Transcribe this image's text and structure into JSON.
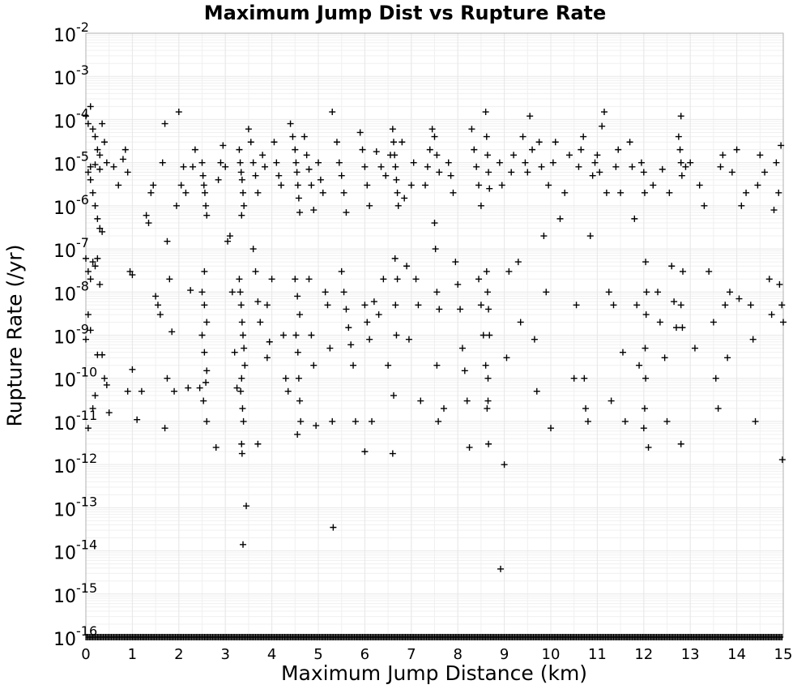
{
  "chart_data": {
    "type": "scatter",
    "title": "Maximum Jump Dist vs Rupture Rate",
    "xlabel": "Maximum Jump Distance (km)",
    "ylabel": "Rupture Rate (/yr)",
    "xlim": [
      0,
      15
    ],
    "ylim": [
      1e-16,
      0.01
    ],
    "yscale": "log",
    "grid": true,
    "marker": "plus",
    "marker_color": "#000000",
    "grid_color": "#e8e8e8",
    "x_ticks": [
      "0",
      "1",
      "2",
      "3",
      "4",
      "5",
      "6",
      "7",
      "8",
      "9",
      "10",
      "11",
      "12",
      "13",
      "14",
      "15"
    ],
    "y_ticks": [
      {
        "base": "10",
        "exp": "-2"
      },
      {
        "base": "10",
        "exp": "-3"
      },
      {
        "base": "10",
        "exp": "-4"
      },
      {
        "base": "10",
        "exp": "-5"
      },
      {
        "base": "10",
        "exp": "-6"
      },
      {
        "base": "10",
        "exp": "-7"
      },
      {
        "base": "10",
        "exp": "-8"
      },
      {
        "base": "10",
        "exp": "-9"
      },
      {
        "base": "10",
        "exp": "-10"
      },
      {
        "base": "10",
        "exp": "-11"
      },
      {
        "base": "10",
        "exp": "-12"
      },
      {
        "base": "10",
        "exp": "-13"
      },
      {
        "base": "10",
        "exp": "-14"
      },
      {
        "base": "10",
        "exp": "-15"
      },
      {
        "base": "10",
        "exp": "-16"
      }
    ],
    "points": [
      [
        0.0,
        0.00012
      ],
      [
        0.05,
        8e-05
      ],
      [
        0.1,
        0.0002
      ],
      [
        0.15,
        6e-05
      ],
      [
        0.2,
        4e-05
      ],
      [
        0.25,
        2e-05
      ],
      [
        0.3,
        1.5e-05
      ],
      [
        0.35,
        8e-05
      ],
      [
        0.4,
        3e-05
      ],
      [
        0.45,
        1e-05
      ],
      [
        0.05,
        6e-06
      ],
      [
        0.1,
        4e-06
      ],
      [
        0.15,
        2e-06
      ],
      [
        0.2,
        1e-06
      ],
      [
        0.25,
        5e-07
      ],
      [
        0.3,
        3e-07
      ],
      [
        0.35,
        2.5e-07
      ],
      [
        0.1,
        8e-06
      ],
      [
        0.2,
        9e-06
      ],
      [
        0.3,
        7e-06
      ],
      [
        0.0,
        6e-08
      ],
      [
        0.05,
        3e-08
      ],
      [
        0.1,
        2e-08
      ],
      [
        0.15,
        5e-08
      ],
      [
        0.2,
        4e-08
      ],
      [
        0.25,
        6e-08
      ],
      [
        0.3,
        1.5e-08
      ],
      [
        0.05,
        3e-09
      ],
      [
        0.1,
        1.3e-09
      ],
      [
        0.0,
        8e-10
      ],
      [
        0.25,
        3.5e-10
      ],
      [
        0.35,
        3.5e-10
      ],
      [
        0.4,
        1e-10
      ],
      [
        0.45,
        7e-11
      ],
      [
        0.15,
        2e-11
      ],
      [
        0.2,
        4e-11
      ],
      [
        0.05,
        7e-12
      ],
      [
        0.5,
        1.6e-11
      ],
      [
        0.6,
        8e-06
      ],
      [
        0.7,
        3e-06
      ],
      [
        0.8,
        1.2e-05
      ],
      [
        0.85,
        2e-05
      ],
      [
        0.9,
        6e-06
      ],
      [
        0.95,
        3e-08
      ],
      [
        1.0,
        2.5e-08
      ],
      [
        0.9,
        5e-11
      ],
      [
        1.0,
        1.6e-10
      ],
      [
        1.1,
        1.1e-11
      ],
      [
        1.2,
        5e-11
      ],
      [
        1.3,
        6e-07
      ],
      [
        1.35,
        4e-07
      ],
      [
        1.4,
        2e-06
      ],
      [
        1.45,
        3e-06
      ],
      [
        1.5,
        8e-09
      ],
      [
        1.55,
        5e-09
      ],
      [
        1.6,
        3e-09
      ],
      [
        1.65,
        1e-05
      ],
      [
        1.7,
        8e-05
      ],
      [
        1.75,
        1.5e-07
      ],
      [
        1.8,
        2e-08
      ],
      [
        1.85,
        1.2e-09
      ],
      [
        1.9,
        5e-11
      ],
      [
        1.75,
        1e-10
      ],
      [
        1.7,
        7e-12
      ],
      [
        1.95,
        1e-06
      ],
      [
        2.0,
        0.00015
      ],
      [
        2.05,
        3e-06
      ],
      [
        2.1,
        8e-06
      ],
      [
        2.15,
        2e-06
      ],
      [
        2.2,
        6e-11
      ],
      [
        2.25,
        1.1e-08
      ],
      [
        2.3,
        8e-06
      ],
      [
        2.35,
        2e-05
      ],
      [
        2.45,
        6e-11
      ],
      [
        2.5,
        1e-05
      ],
      [
        2.52,
        5e-06
      ],
      [
        2.54,
        3e-06
      ],
      [
        2.56,
        2e-06
      ],
      [
        2.58,
        1e-06
      ],
      [
        2.6,
        6e-07
      ],
      [
        2.55,
        3e-08
      ],
      [
        2.5,
        1e-08
      ],
      [
        2.55,
        5e-09
      ],
      [
        2.6,
        2e-09
      ],
      [
        2.5,
        1e-09
      ],
      [
        2.55,
        4e-10
      ],
      [
        2.6,
        1.5e-10
      ],
      [
        2.58,
        8e-11
      ],
      [
        2.53,
        3e-11
      ],
      [
        2.6,
        1e-11
      ],
      [
        2.8,
        2.5e-12
      ],
      [
        2.85,
        4e-06
      ],
      [
        2.9,
        1e-05
      ],
      [
        2.95,
        2.5e-05
      ],
      [
        3.0,
        8e-06
      ],
      [
        3.05,
        1.5e-07
      ],
      [
        3.1,
        2e-07
      ],
      [
        3.15,
        1e-08
      ],
      [
        3.2,
        4e-10
      ],
      [
        3.25,
        6e-11
      ],
      [
        3.3,
        2e-05
      ],
      [
        3.32,
        1e-05
      ],
      [
        3.34,
        6e-06
      ],
      [
        3.36,
        4e-06
      ],
      [
        3.38,
        2e-06
      ],
      [
        3.4,
        1e-06
      ],
      [
        3.35,
        6e-07
      ],
      [
        3.3,
        2e-08
      ],
      [
        3.32,
        1e-08
      ],
      [
        3.34,
        5e-09
      ],
      [
        3.36,
        2e-09
      ],
      [
        3.38,
        1e-09
      ],
      [
        3.4,
        5e-10
      ],
      [
        3.42,
        2e-10
      ],
      [
        3.35,
        1e-10
      ],
      [
        3.33,
        5e-11
      ],
      [
        3.37,
        2e-11
      ],
      [
        3.39,
        1e-11
      ],
      [
        3.35,
        3e-12
      ],
      [
        3.36,
        1.8e-12
      ],
      [
        3.45,
        1.1e-13
      ],
      [
        3.38,
        1.4e-14
      ],
      [
        3.5,
        6e-05
      ],
      [
        3.55,
        3e-05
      ],
      [
        3.6,
        1e-05
      ],
      [
        3.65,
        5e-06
      ],
      [
        3.7,
        2e-06
      ],
      [
        3.6,
        1e-07
      ],
      [
        3.65,
        3e-08
      ],
      [
        3.7,
        6e-09
      ],
      [
        3.75,
        2e-09
      ],
      [
        3.7,
        3e-12
      ],
      [
        3.8,
        1.5e-05
      ],
      [
        3.85,
        8e-06
      ],
      [
        3.9,
        5e-09
      ],
      [
        3.95,
        7e-10
      ],
      [
        3.9,
        3e-10
      ],
      [
        4.0,
        2e-08
      ],
      [
        4.05,
        3e-05
      ],
      [
        4.1,
        1e-05
      ],
      [
        4.15,
        5e-06
      ],
      [
        4.2,
        3e-06
      ],
      [
        4.25,
        1e-09
      ],
      [
        4.3,
        1e-10
      ],
      [
        4.35,
        5e-11
      ],
      [
        4.4,
        8e-05
      ],
      [
        4.45,
        4e-05
      ],
      [
        4.5,
        2e-05
      ],
      [
        4.52,
        1e-05
      ],
      [
        4.54,
        6e-06
      ],
      [
        4.56,
        3e-06
      ],
      [
        4.58,
        1.5e-06
      ],
      [
        4.6,
        7e-07
      ],
      [
        4.5,
        2e-08
      ],
      [
        4.55,
        8e-09
      ],
      [
        4.6,
        3e-09
      ],
      [
        4.52,
        1e-09
      ],
      [
        4.56,
        4e-10
      ],
      [
        4.58,
        1e-10
      ],
      [
        4.6,
        3e-11
      ],
      [
        4.62,
        1e-11
      ],
      [
        4.55,
        5e-12
      ],
      [
        4.7,
        4e-05
      ],
      [
        4.75,
        1.5e-05
      ],
      [
        4.8,
        7e-06
      ],
      [
        4.85,
        3e-06
      ],
      [
        4.9,
        8e-07
      ],
      [
        4.8,
        2e-08
      ],
      [
        4.85,
        1e-09
      ],
      [
        4.9,
        2e-10
      ],
      [
        4.95,
        8e-12
      ],
      [
        5.0,
        1e-05
      ],
      [
        5.05,
        4e-06
      ],
      [
        5.1,
        2e-06
      ],
      [
        5.15,
        1e-08
      ],
      [
        5.2,
        5e-09
      ],
      [
        5.25,
        5e-10
      ],
      [
        5.3,
        1e-11
      ],
      [
        5.3,
        0.00015
      ],
      [
        5.32,
        3.5e-14
      ],
      [
        5.4,
        3e-05
      ],
      [
        5.45,
        1e-05
      ],
      [
        5.5,
        5e-06
      ],
      [
        5.55,
        2e-06
      ],
      [
        5.6,
        7e-07
      ],
      [
        5.5,
        3e-08
      ],
      [
        5.55,
        1e-08
      ],
      [
        5.6,
        4e-09
      ],
      [
        5.65,
        1.5e-09
      ],
      [
        5.7,
        6e-10
      ],
      [
        5.75,
        2e-10
      ],
      [
        5.8,
        1e-11
      ],
      [
        5.9,
        5e-05
      ],
      [
        5.95,
        2e-05
      ],
      [
        6.0,
        8e-06
      ],
      [
        6.05,
        3e-06
      ],
      [
        6.1,
        1e-06
      ],
      [
        6.0,
        5e-09
      ],
      [
        6.05,
        2e-09
      ],
      [
        6.1,
        8e-10
      ],
      [
        6.0,
        2e-12
      ],
      [
        6.15,
        1e-11
      ],
      [
        6.2,
        6e-09
      ],
      [
        6.25,
        1.8e-05
      ],
      [
        6.3,
        3e-09
      ],
      [
        6.35,
        8e-06
      ],
      [
        6.4,
        2e-08
      ],
      [
        6.45,
        5e-06
      ],
      [
        6.5,
        2e-10
      ],
      [
        6.55,
        1.5e-05
      ],
      [
        6.6,
        6e-05
      ],
      [
        6.62,
        3e-05
      ],
      [
        6.64,
        1.5e-05
      ],
      [
        6.66,
        8e-06
      ],
      [
        6.68,
        4e-06
      ],
      [
        6.7,
        2e-06
      ],
      [
        6.72,
        1e-06
      ],
      [
        6.65,
        6e-08
      ],
      [
        6.7,
        2e-08
      ],
      [
        6.66,
        5e-09
      ],
      [
        6.68,
        1e-09
      ],
      [
        6.62,
        4e-11
      ],
      [
        6.6,
        1.8e-12
      ],
      [
        6.8,
        3e-05
      ],
      [
        6.85,
        1.5e-06
      ],
      [
        6.9,
        4e-08
      ],
      [
        6.95,
        8e-10
      ],
      [
        7.0,
        3e-06
      ],
      [
        7.05,
        1e-05
      ],
      [
        7.1,
        2e-08
      ],
      [
        7.15,
        5e-09
      ],
      [
        7.2,
        3e-11
      ],
      [
        7.3,
        3e-06
      ],
      [
        7.35,
        8e-06
      ],
      [
        7.4,
        2e-05
      ],
      [
        7.45,
        6e-05
      ],
      [
        7.5,
        4e-05
      ],
      [
        7.55,
        1.5e-05
      ],
      [
        7.6,
        6e-06
      ],
      [
        7.5,
        4e-07
      ],
      [
        7.52,
        1e-07
      ],
      [
        7.55,
        1e-08
      ],
      [
        7.6,
        4e-09
      ],
      [
        7.55,
        2e-10
      ],
      [
        7.58,
        1e-11
      ],
      [
        7.7,
        2e-11
      ],
      [
        7.8,
        1e-05
      ],
      [
        7.85,
        5e-06
      ],
      [
        7.9,
        2e-06
      ],
      [
        7.95,
        5e-08
      ],
      [
        8.0,
        1.5e-08
      ],
      [
        8.05,
        4e-09
      ],
      [
        8.1,
        5e-10
      ],
      [
        8.15,
        1.5e-10
      ],
      [
        8.2,
        3e-11
      ],
      [
        8.25,
        2.5e-12
      ],
      [
        8.3,
        6e-05
      ],
      [
        8.35,
        2e-05
      ],
      [
        8.4,
        8e-06
      ],
      [
        8.45,
        3e-06
      ],
      [
        8.5,
        1e-06
      ],
      [
        8.45,
        2e-08
      ],
      [
        8.5,
        5e-09
      ],
      [
        8.55,
        1e-09
      ],
      [
        8.6,
        2e-10
      ],
      [
        8.65,
        3e-11
      ],
      [
        8.6,
        0.00015
      ],
      [
        8.62,
        4e-05
      ],
      [
        8.64,
        1.5e-05
      ],
      [
        8.66,
        6e-06
      ],
      [
        8.68,
        2.5e-06
      ],
      [
        8.62,
        3e-08
      ],
      [
        8.64,
        1e-08
      ],
      [
        8.66,
        4e-09
      ],
      [
        8.68,
        1e-09
      ],
      [
        8.65,
        1e-10
      ],
      [
        8.63,
        2e-11
      ],
      [
        8.66,
        3e-12
      ],
      [
        8.9,
        1e-05
      ],
      [
        8.95,
        3e-06
      ],
      [
        8.92,
        3.8e-15
      ],
      [
        9.0,
        1e-12
      ],
      [
        9.05,
        3e-10
      ],
      [
        9.1,
        3e-08
      ],
      [
        9.15,
        6e-06
      ],
      [
        9.2,
        1.5e-05
      ],
      [
        9.3,
        5e-08
      ],
      [
        9.35,
        2e-09
      ],
      [
        9.4,
        4e-05
      ],
      [
        9.45,
        1e-05
      ],
      [
        9.5,
        6e-06
      ],
      [
        9.55,
        0.00012
      ],
      [
        9.6,
        2e-05
      ],
      [
        9.65,
        8e-10
      ],
      [
        9.7,
        5e-11
      ],
      [
        9.75,
        3e-05
      ],
      [
        9.8,
        8e-06
      ],
      [
        9.85,
        2e-07
      ],
      [
        9.9,
        1e-08
      ],
      [
        9.95,
        3e-06
      ],
      [
        10.0,
        7e-12
      ],
      [
        10.05,
        1e-05
      ],
      [
        10.1,
        3e-05
      ],
      [
        10.2,
        5e-07
      ],
      [
        10.3,
        2e-06
      ],
      [
        10.4,
        1.5e-05
      ],
      [
        10.5,
        1e-10
      ],
      [
        10.55,
        5e-09
      ],
      [
        10.6,
        8e-06
      ],
      [
        10.65,
        2e-05
      ],
      [
        10.7,
        4e-05
      ],
      [
        10.72,
        1e-10
      ],
      [
        10.75,
        2e-11
      ],
      [
        10.8,
        1e-11
      ],
      [
        10.85,
        2e-07
      ],
      [
        10.9,
        5e-06
      ],
      [
        10.95,
        1e-05
      ],
      [
        11.0,
        1.5e-05
      ],
      [
        11.05,
        6e-06
      ],
      [
        11.1,
        7e-05
      ],
      [
        11.15,
        0.00015
      ],
      [
        11.2,
        2e-06
      ],
      [
        11.25,
        1e-08
      ],
      [
        11.3,
        3e-11
      ],
      [
        11.35,
        5e-09
      ],
      [
        11.4,
        8e-06
      ],
      [
        11.45,
        2e-05
      ],
      [
        11.5,
        2e-06
      ],
      [
        11.55,
        4e-10
      ],
      [
        11.6,
        1e-11
      ],
      [
        11.7,
        3e-05
      ],
      [
        11.75,
        8e-06
      ],
      [
        11.8,
        5e-07
      ],
      [
        11.85,
        5e-09
      ],
      [
        11.9,
        2e-10
      ],
      [
        11.95,
        1e-05
      ],
      [
        12.0,
        6e-06
      ],
      [
        12.02,
        2e-06
      ],
      [
        12.04,
        5e-08
      ],
      [
        12.06,
        1e-08
      ],
      [
        12.05,
        3e-09
      ],
      [
        12.03,
        5e-10
      ],
      [
        12.04,
        1e-10
      ],
      [
        12.02,
        2e-11
      ],
      [
        12.0,
        7e-12
      ],
      [
        12.1,
        2.5e-12
      ],
      [
        12.2,
        3e-06
      ],
      [
        12.3,
        1e-08
      ],
      [
        12.35,
        2e-09
      ],
      [
        12.4,
        7e-06
      ],
      [
        12.45,
        3e-10
      ],
      [
        12.5,
        1e-11
      ],
      [
        12.55,
        2e-06
      ],
      [
        12.6,
        4e-08
      ],
      [
        12.65,
        6e-09
      ],
      [
        12.7,
        1.5e-09
      ],
      [
        12.75,
        4e-05
      ],
      [
        12.78,
        2e-05
      ],
      [
        12.8,
        1e-05
      ],
      [
        12.82,
        5e-06
      ],
      [
        12.8,
        0.00012
      ],
      [
        12.84,
        3e-08
      ],
      [
        12.8,
        5e-09
      ],
      [
        12.83,
        1.5e-09
      ],
      [
        12.8,
        3e-12
      ],
      [
        12.9,
        8e-06
      ],
      [
        13.0,
        1e-05
      ],
      [
        13.1,
        5e-10
      ],
      [
        13.2,
        3e-06
      ],
      [
        13.3,
        1e-06
      ],
      [
        13.4,
        3e-08
      ],
      [
        13.5,
        2e-09
      ],
      [
        13.55,
        1e-10
      ],
      [
        13.6,
        2e-11
      ],
      [
        13.65,
        8e-06
      ],
      [
        13.7,
        1.5e-05
      ],
      [
        13.75,
        5e-09
      ],
      [
        13.8,
        3e-10
      ],
      [
        13.85,
        1e-08
      ],
      [
        13.9,
        6e-06
      ],
      [
        14.0,
        2e-05
      ],
      [
        14.05,
        7e-09
      ],
      [
        14.1,
        1e-06
      ],
      [
        14.2,
        2e-06
      ],
      [
        14.3,
        5e-09
      ],
      [
        14.35,
        8e-10
      ],
      [
        14.4,
        1e-11
      ],
      [
        14.45,
        3e-06
      ],
      [
        14.5,
        1.5e-05
      ],
      [
        14.6,
        6e-06
      ],
      [
        14.7,
        2e-08
      ],
      [
        14.75,
        3e-09
      ],
      [
        14.8,
        8e-07
      ],
      [
        14.85,
        1e-05
      ],
      [
        14.9,
        2e-06
      ],
      [
        14.95,
        2.5e-05
      ],
      [
        14.97,
        5e-09
      ],
      [
        14.98,
        1.3e-12
      ],
      [
        15.0,
        2e-09
      ],
      [
        14.92,
        1.5e-08
      ]
    ],
    "floor_value": 1e-16
  }
}
